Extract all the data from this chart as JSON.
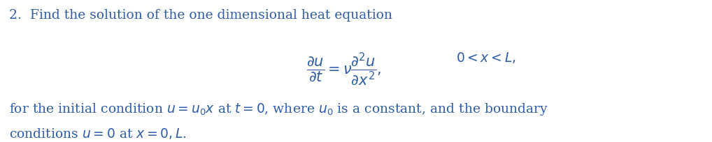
{
  "title_text": "2.  Find the solution of the one dimensional heat equation",
  "equation": "\\frac{\\partial u}{\\partial t} = \\nu \\frac{\\partial^2 u}{\\partial x^2},",
  "condition": "0 < x < L,",
  "body_line1": "for the initial condition $u = u_0 x$ at $t = 0$, where $u_0$ is a constant, and the boundary",
  "body_line2": "conditions $u = 0$ at $x = 0, L.$",
  "text_color": "#2E5EAA",
  "bg_color": "#ffffff",
  "fig_width": 10.18,
  "fig_height": 2.04,
  "dpi": 100
}
